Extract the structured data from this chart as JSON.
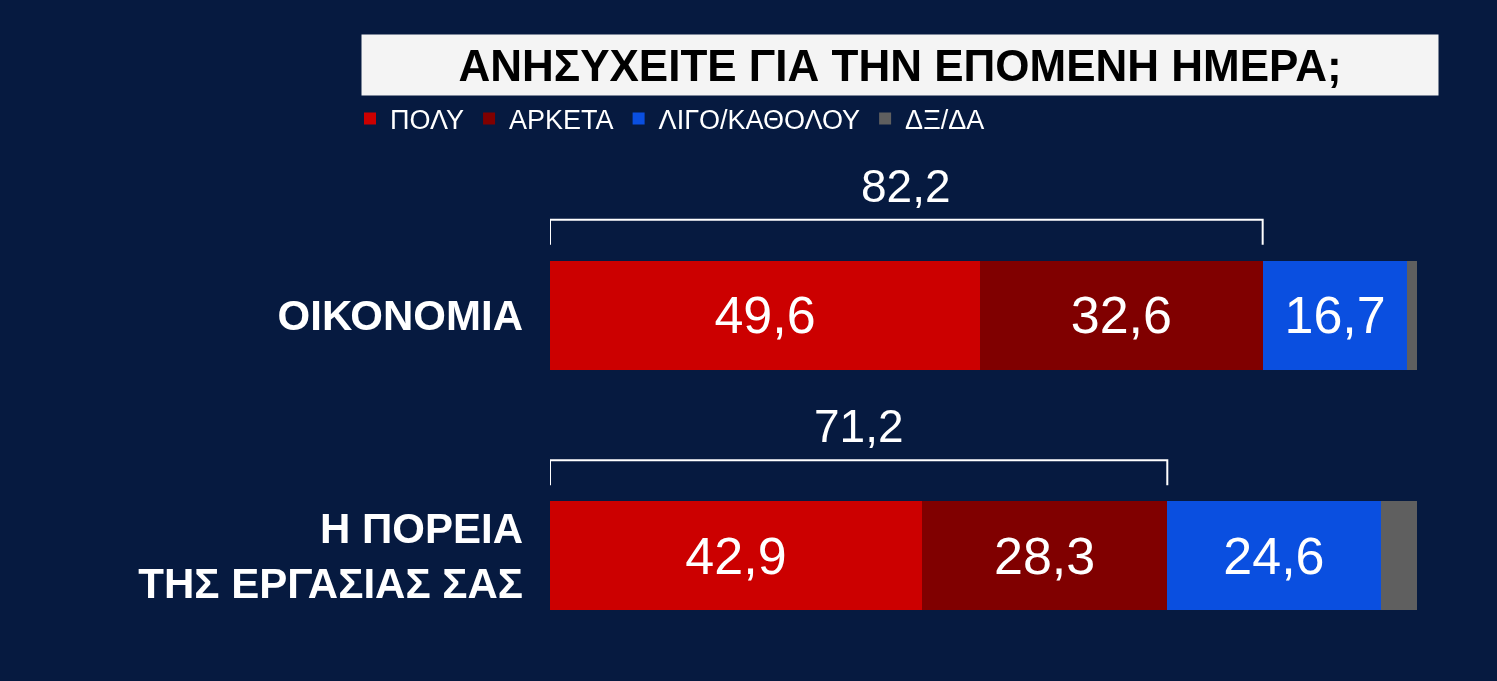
{
  "chart_data": {
    "type": "bar",
    "orientation": "horizontal",
    "stacked": true,
    "title": "ΑΝΗΣΥΧΕΙΤΕ ΓΙΑ ΤΗΝ ΕΠΟΜΕΝΗ ΗΜΕΡΑ;",
    "categories": [
      "ΟΙΚΟΝΟΜΙΑ",
      "Η ΠΟΡΕΙΑ\nΤΗΣ ΕΡΓΑΣΙΑΣ ΣΑΣ"
    ],
    "series": [
      {
        "name": "ΠΟΛΥ",
        "color": "#cc0000",
        "values": [
          49.6,
          42.9
        ],
        "value_labels": [
          "49,6",
          "42,9"
        ]
      },
      {
        "name": "ΑΡΚΕΤΑ",
        "color": "#800000",
        "values": [
          32.6,
          28.3
        ],
        "value_labels": [
          "32,6",
          "28,3"
        ]
      },
      {
        "name": "ΛΙΓΟ/ΚΑΘΟΛΟΥ",
        "color": "#0a4fe0",
        "values": [
          16.7,
          24.6
        ],
        "value_labels": [
          "16,7",
          "24,6"
        ]
      },
      {
        "name": "ΔΞ/ΔΑ",
        "color": "#5f5f5f",
        "values": [
          1.1,
          4.2
        ],
        "value_labels": [
          null,
          null
        ]
      }
    ],
    "xlim": [
      0,
      100
    ],
    "tick_labels": "y",
    "legend": "top",
    "annotations": [
      "82,2",
      "71,2"
    ]
  }
}
